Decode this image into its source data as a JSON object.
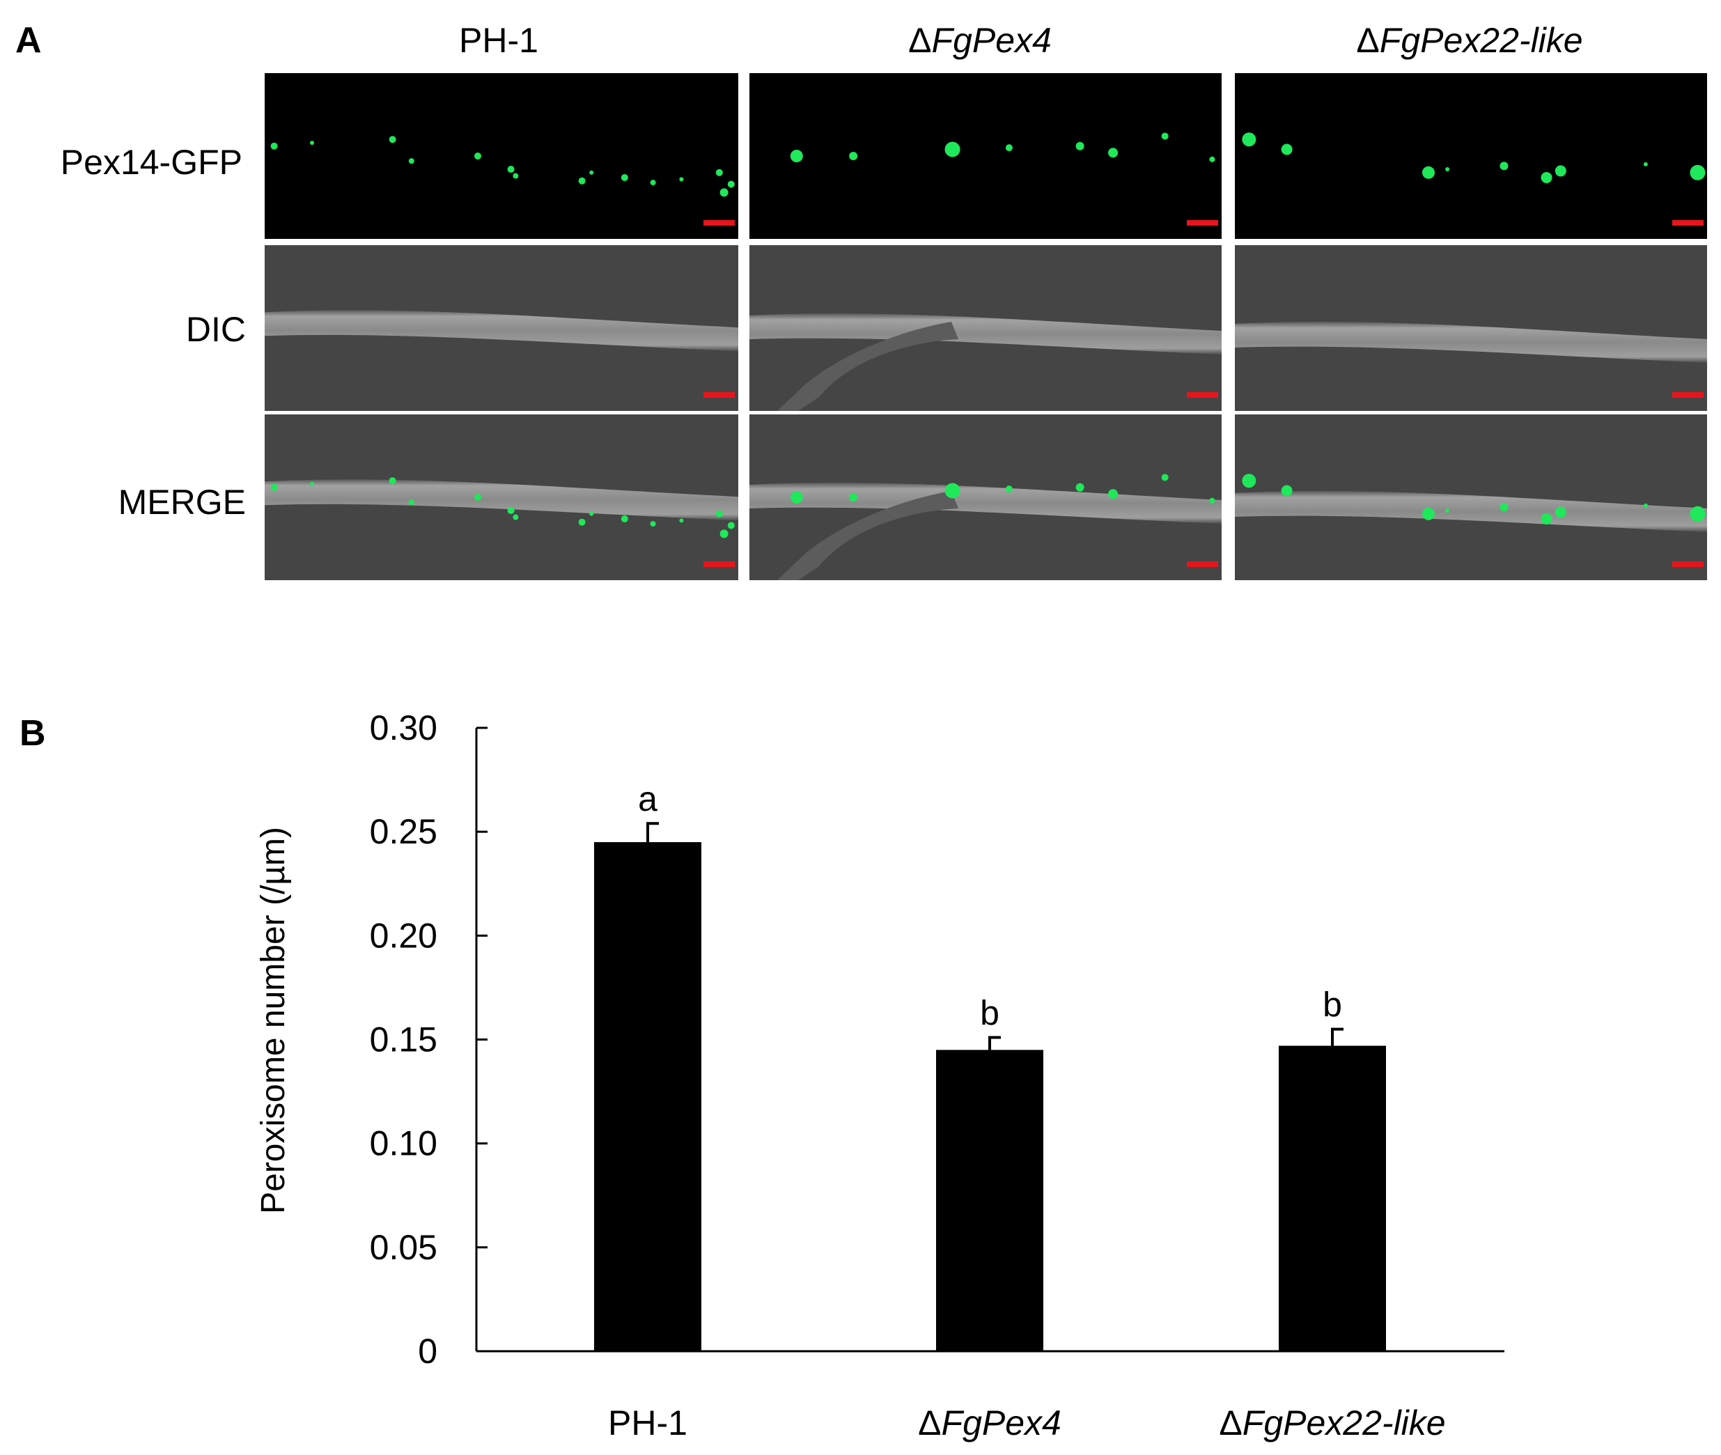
{
  "panel_a": {
    "label": "A",
    "columns": [
      {
        "prefix": "",
        "name": "PH-1"
      },
      {
        "prefix": "Δ",
        "name": "FgPex4"
      },
      {
        "prefix": "Δ",
        "name": "FgPex22-like"
      }
    ],
    "rows": [
      "Pex14-GFP",
      "DIC",
      "MERGE"
    ],
    "colors": {
      "gfp_background": "#000000",
      "gfp_spot": "#1fe85a",
      "dic_background": "#454545",
      "hypha": "#8e8e8e",
      "scale_bar": "#e8141c"
    }
  },
  "panel_b": {
    "label": "B"
  },
  "chart_data": {
    "type": "bar",
    "categories": [
      "PH-1",
      "ΔFgPex4",
      "ΔFgPex22-like"
    ],
    "category_labels": [
      {
        "prefix": "",
        "name": "PH-1"
      },
      {
        "prefix": "Δ",
        "name": "FgPex4"
      },
      {
        "prefix": "Δ",
        "name": "FgPex22-like"
      }
    ],
    "values": [
      0.245,
      0.145,
      0.147
    ],
    "errors": [
      0.009,
      0.006,
      0.008
    ],
    "significance": [
      "a",
      "b",
      "b"
    ],
    "ylabel": "Peroxisome number (/µm)",
    "xlabel": "",
    "ylim": [
      0,
      0.3
    ],
    "yticks": [
      0,
      0.05,
      0.1,
      0.15,
      0.2,
      0.25,
      0.3
    ],
    "ytick_labels": [
      "0",
      "0.05",
      "0.10",
      "0.15",
      "0.20",
      "0.25",
      "0.30"
    ],
    "bar_color": "#000000",
    "grid": false
  }
}
